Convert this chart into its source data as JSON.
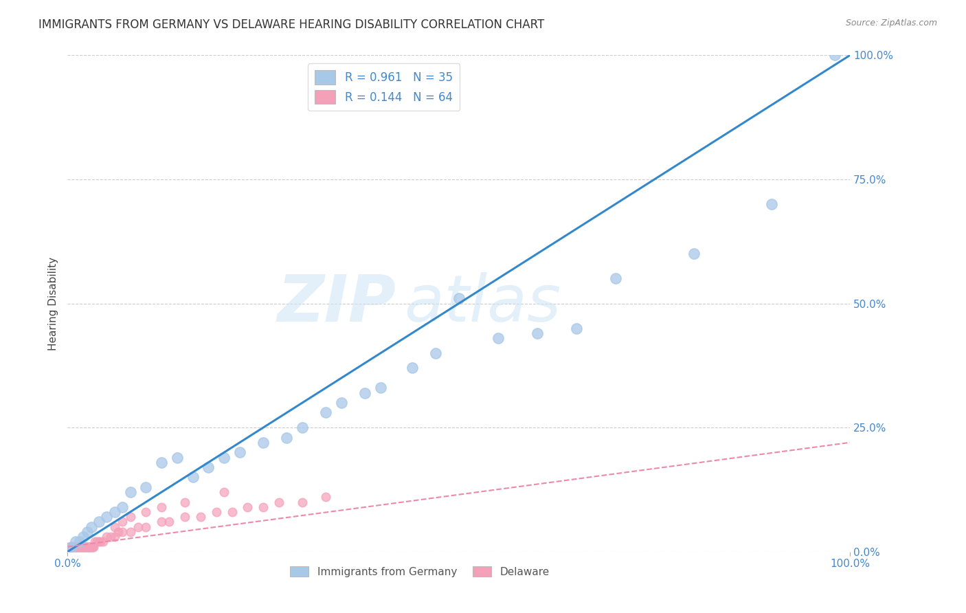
{
  "title": "IMMIGRANTS FROM GERMANY VS DELAWARE HEARING DISABILITY CORRELATION CHART",
  "source": "Source: ZipAtlas.com",
  "ylabel": "Hearing Disability",
  "watermark": "ZIPatlas",
  "blue_R": 0.961,
  "blue_N": 35,
  "pink_R": 0.144,
  "pink_N": 64,
  "blue_color": "#a8c8e8",
  "pink_color": "#f4a0b8",
  "blue_line_color": "#3388cc",
  "pink_line_color": "#ee88aa",
  "xlim": [
    0.0,
    1.0
  ],
  "ylim": [
    0.0,
    1.0
  ],
  "ytick_labels": [
    "0.0%",
    "25.0%",
    "50.0%",
    "75.0%",
    "100.0%"
  ],
  "ytick_positions": [
    0.0,
    0.25,
    0.5,
    0.75,
    1.0
  ],
  "grid_color": "#cccccc",
  "title_color": "#333333",
  "axis_label_color": "#444444",
  "tick_label_color": "#4488cc",
  "legend_blue_label": "Immigrants from Germany",
  "legend_pink_label": "Delaware",
  "blue_scatter_x": [
    0.005,
    0.01,
    0.015,
    0.02,
    0.025,
    0.03,
    0.04,
    0.05,
    0.06,
    0.07,
    0.08,
    0.1,
    0.12,
    0.14,
    0.16,
    0.18,
    0.2,
    0.22,
    0.25,
    0.28,
    0.3,
    0.33,
    0.35,
    0.38,
    0.4,
    0.44,
    0.47,
    0.5,
    0.55,
    0.6,
    0.65,
    0.7,
    0.8,
    0.9,
    0.98
  ],
  "blue_scatter_y": [
    0.01,
    0.02,
    0.02,
    0.03,
    0.04,
    0.05,
    0.06,
    0.07,
    0.08,
    0.09,
    0.12,
    0.13,
    0.18,
    0.19,
    0.15,
    0.17,
    0.19,
    0.2,
    0.22,
    0.23,
    0.25,
    0.28,
    0.3,
    0.32,
    0.33,
    0.37,
    0.4,
    0.51,
    0.43,
    0.44,
    0.45,
    0.55,
    0.6,
    0.7,
    1.0
  ],
  "pink_scatter_x": [
    0.001,
    0.002,
    0.003,
    0.004,
    0.005,
    0.006,
    0.007,
    0.008,
    0.009,
    0.01,
    0.011,
    0.012,
    0.013,
    0.014,
    0.015,
    0.016,
    0.017,
    0.018,
    0.019,
    0.02,
    0.021,
    0.022,
    0.023,
    0.024,
    0.025,
    0.026,
    0.027,
    0.028,
    0.029,
    0.03,
    0.031,
    0.032,
    0.033,
    0.035,
    0.037,
    0.04,
    0.042,
    0.045,
    0.05,
    0.055,
    0.06,
    0.065,
    0.07,
    0.08,
    0.09,
    0.1,
    0.12,
    0.13,
    0.15,
    0.17,
    0.19,
    0.21,
    0.23,
    0.25,
    0.27,
    0.3,
    0.33,
    0.06,
    0.07,
    0.08,
    0.1,
    0.12,
    0.15,
    0.2
  ],
  "pink_scatter_y": [
    0.01,
    0.01,
    0.01,
    0.01,
    0.01,
    0.01,
    0.01,
    0.01,
    0.01,
    0.01,
    0.01,
    0.01,
    0.01,
    0.01,
    0.01,
    0.01,
    0.01,
    0.01,
    0.01,
    0.01,
    0.01,
    0.01,
    0.01,
    0.01,
    0.01,
    0.01,
    0.01,
    0.01,
    0.01,
    0.01,
    0.01,
    0.01,
    0.01,
    0.02,
    0.02,
    0.02,
    0.02,
    0.02,
    0.03,
    0.03,
    0.03,
    0.04,
    0.04,
    0.04,
    0.05,
    0.05,
    0.06,
    0.06,
    0.07,
    0.07,
    0.08,
    0.08,
    0.09,
    0.09,
    0.1,
    0.1,
    0.11,
    0.05,
    0.06,
    0.07,
    0.08,
    0.09,
    0.1,
    0.12
  ],
  "blue_marker_size": 120,
  "pink_marker_size": 80,
  "blue_line_x": [
    0.0,
    1.0
  ],
  "blue_line_y": [
    0.0,
    1.0
  ],
  "pink_line_x": [
    0.0,
    1.0
  ],
  "pink_line_y": [
    0.01,
    0.22
  ]
}
